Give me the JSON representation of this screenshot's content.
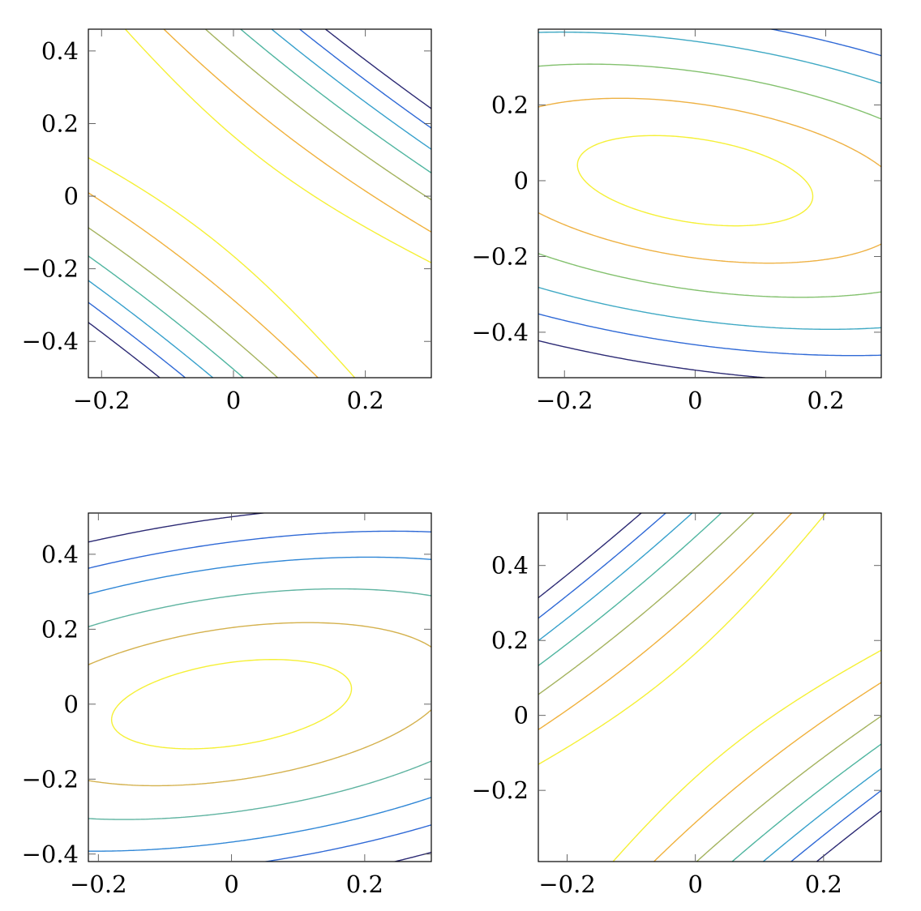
{
  "chart_data": [
    {
      "type": "contour",
      "xlim": [
        -0.22,
        0.3
      ],
      "ylim": [
        -0.5,
        0.46
      ],
      "x_ticks": [
        -0.2,
        0,
        0.2
      ],
      "x_tick_labels": [
        "−0.2",
        "0",
        "0.2"
      ],
      "y_ticks": [
        -0.4,
        -0.2,
        0,
        0.2,
        0.4
      ],
      "y_tick_labels": [
        "−0.4",
        "−0.2",
        "0",
        "0.2",
        "0.4"
      ],
      "grid": false,
      "function": {
        "a": 1.0,
        "b": 0.85,
        "c": 0.55
      },
      "levels": [
        0.015,
        0.045,
        0.085,
        0.125,
        0.165,
        0.205,
        0.245
      ],
      "level_colors": [
        "#f5f036",
        "#f0b13c",
        "#a4b35e",
        "#4fb5a0",
        "#36a0cc",
        "#2f69d6",
        "#2c2a74"
      ]
    },
    {
      "type": "contour",
      "xlim": [
        -0.24,
        0.285
      ],
      "ylim": [
        -0.52,
        0.4
      ],
      "x_ticks": [
        -0.2,
        0,
        0.2
      ],
      "x_tick_labels": [
        "−0.2",
        "0",
        "0.2"
      ],
      "y_ticks": [
        -0.4,
        -0.2,
        0,
        0.2
      ],
      "y_tick_labels": [
        "−0.4",
        "−0.2",
        "0",
        "0.2"
      ],
      "grid": false,
      "function": {
        "a": 0.42,
        "b": 0.22,
        "c": 0.96
      },
      "levels": [
        0.012,
        0.04,
        0.08,
        0.13,
        0.18,
        0.24
      ],
      "level_colors": [
        "#f5f036",
        "#eeb143",
        "#83c16e",
        "#3fa9c4",
        "#2f69d6",
        "#2c2a74"
      ]
    },
    {
      "type": "contour",
      "xlim": [
        -0.215,
        0.3
      ],
      "ylim": [
        -0.42,
        0.51
      ],
      "x_ticks": [
        -0.2,
        0,
        0.2
      ],
      "x_tick_labels": [
        "−0.2",
        "0",
        "0.2"
      ],
      "y_ticks": [
        -0.4,
        -0.2,
        0,
        0.2,
        0.4
      ],
      "y_tick_labels": [
        "−0.4",
        "−0.2",
        "0",
        "0.2",
        "0.4"
      ],
      "grid": false,
      "function": {
        "a": 0.42,
        "b": -0.22,
        "c": 0.96
      },
      "levels": [
        0.012,
        0.04,
        0.08,
        0.13,
        0.18,
        0.24
      ],
      "level_colors": [
        "#f5f036",
        "#d4b14d",
        "#5eb3a0",
        "#2f86d6",
        "#2f69d6",
        "#2c2a74"
      ]
    },
    {
      "type": "contour",
      "xlim": [
        -0.245,
        0.29
      ],
      "ylim": [
        -0.39,
        0.54
      ],
      "x_ticks": [
        -0.2,
        0,
        0.2
      ],
      "x_tick_labels": [
        "−0.2",
        "0",
        "0.2"
      ],
      "y_ticks": [
        -0.2,
        0,
        0.2,
        0.4
      ],
      "y_tick_labels": [
        "−0.2",
        "0",
        "0.2",
        "0.4"
      ],
      "grid": false,
      "function": {
        "a": 1.0,
        "b": -0.85,
        "c": 0.55
      },
      "levels": [
        0.015,
        0.045,
        0.085,
        0.125,
        0.165,
        0.205,
        0.245
      ],
      "level_colors": [
        "#f5f036",
        "#f0b13c",
        "#a4b35e",
        "#4fb5a0",
        "#36a0cc",
        "#2f69d6",
        "#2c2a74"
      ]
    }
  ]
}
